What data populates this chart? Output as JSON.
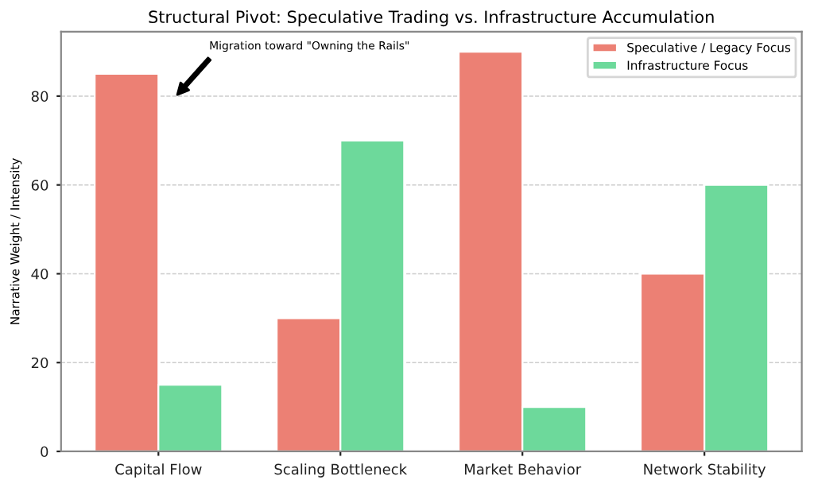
{
  "chart_data": {
    "type": "bar",
    "title": "Structural Pivot: Speculative Trading vs. Infrastructure Accumulation",
    "ylabel": "Narrative Weight / Intensity",
    "categories": [
      "Capital Flow",
      "Scaling Bottleneck",
      "Market Behavior",
      "Network Stability"
    ],
    "series": [
      {
        "name": "Speculative / Legacy Focus",
        "color": "#ec8074",
        "values": [
          85,
          30,
          90,
          40
        ]
      },
      {
        "name": "Infrastructure Focus",
        "color": "#6dd99b",
        "values": [
          15,
          70,
          10,
          60
        ]
      }
    ],
    "annotations": [
      "Migration toward \"Owning the Rails\""
    ],
    "ylim": [
      0,
      94.5
    ],
    "yticks": [
      0,
      20,
      40,
      60,
      80
    ],
    "grid": "y",
    "legend": "top right"
  }
}
